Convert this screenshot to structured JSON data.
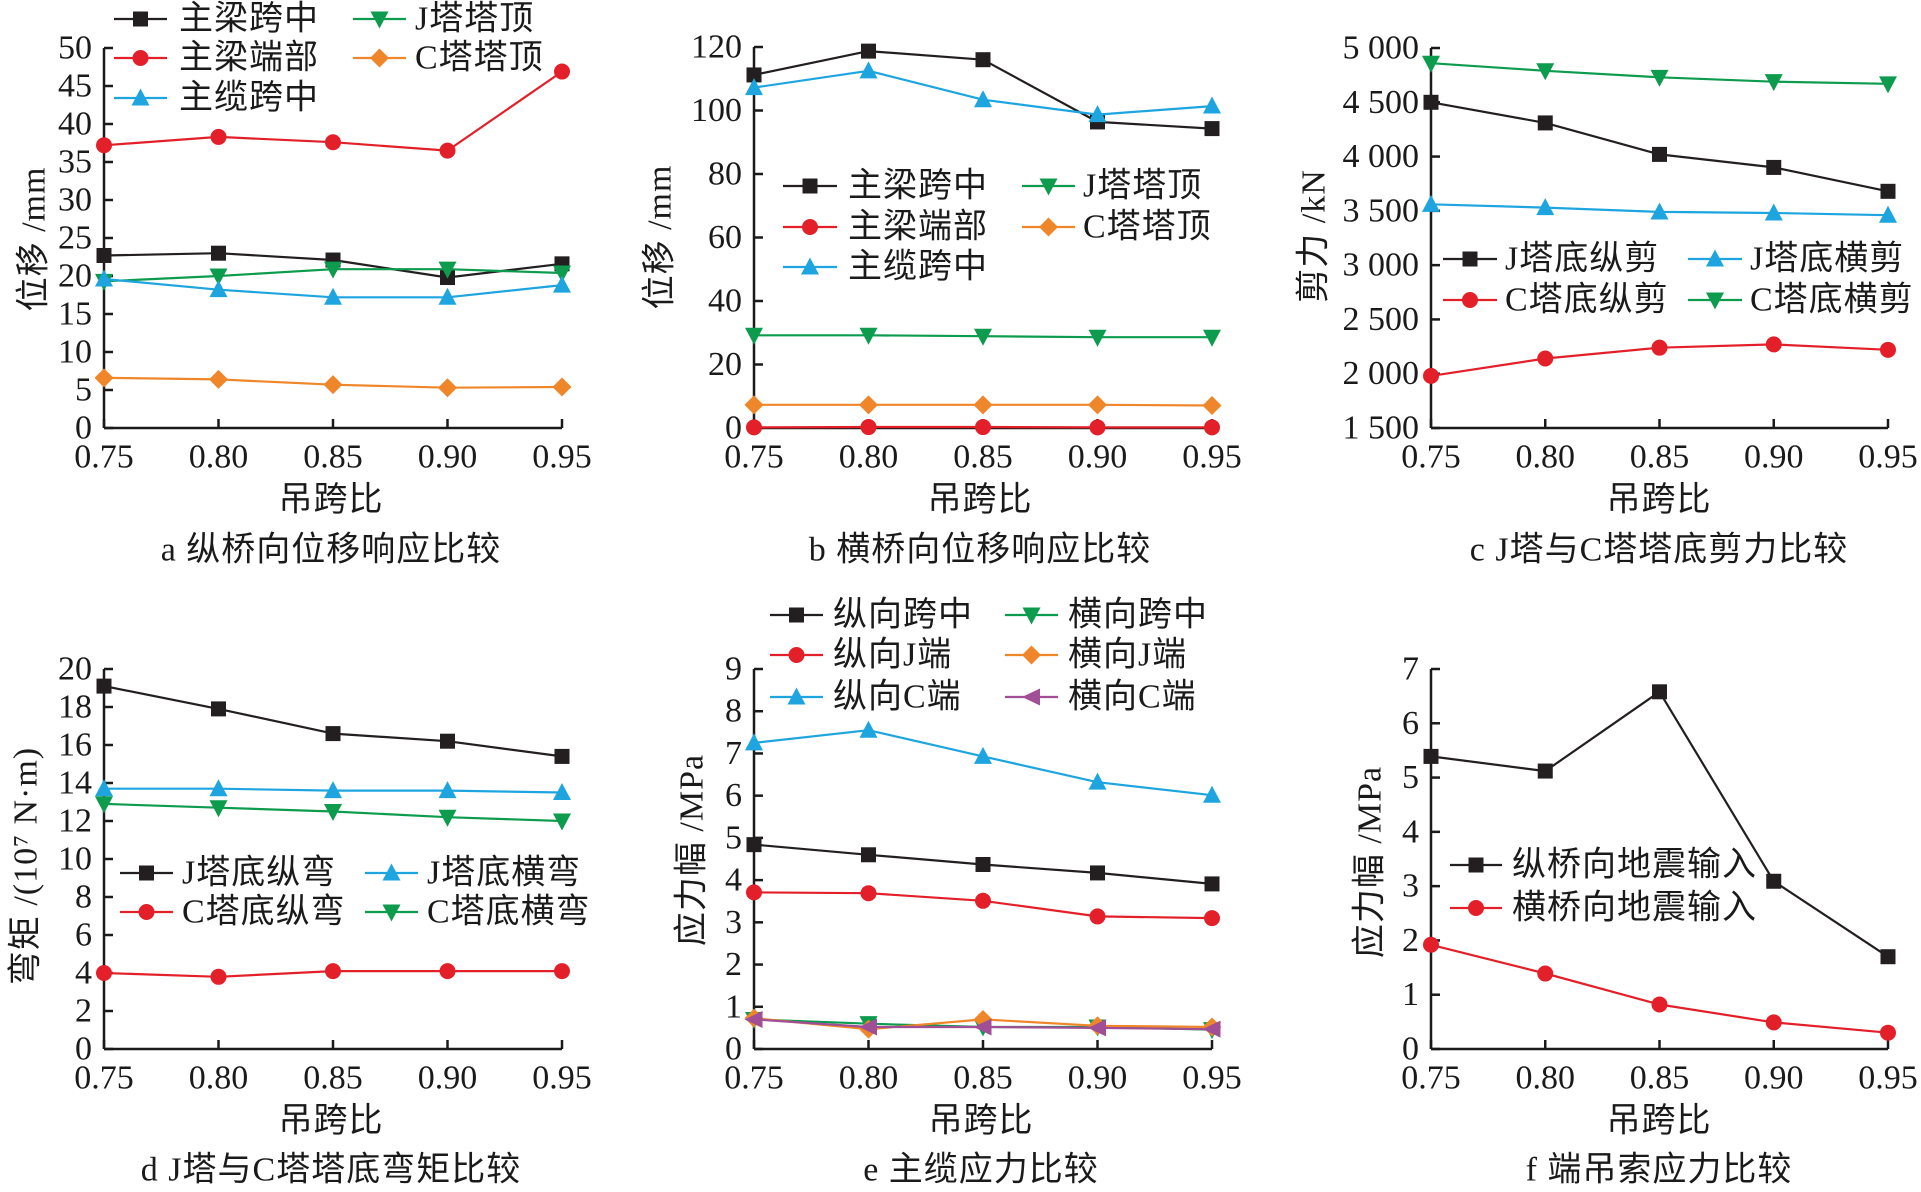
{
  "figure": {
    "background": "#ffffff",
    "panel_count": 6
  },
  "chart_data": [
    {
      "panel": "a",
      "type": "line",
      "title": "a  纵桥向位移响应比较",
      "xlabel": "吊跨比",
      "ylabel": "位移 /mm",
      "x": [
        0.75,
        0.8,
        0.85,
        0.9,
        0.95
      ],
      "xtick_labels": [
        "0.75",
        "0.80",
        "0.85",
        "0.90",
        "0.95"
      ],
      "ylim": [
        0,
        50
      ],
      "yticks": [
        0,
        5,
        10,
        15,
        20,
        25,
        30,
        35,
        40,
        45,
        50
      ],
      "ytick_labels": [
        "0",
        "5",
        "10",
        "15",
        "20",
        "25",
        "30",
        "35",
        "40",
        "45",
        "50"
      ],
      "grid": false,
      "legend": {
        "placement": "top",
        "columns": 2
      },
      "series": [
        {
          "name": "主梁跨中",
          "color": "#231f20",
          "marker": "square",
          "values": [
            22.7,
            23.0,
            22.1,
            19.8,
            21.6
          ]
        },
        {
          "name": "J塔塔顶",
          "color": "#0d9b4d",
          "marker": "triangle-down",
          "values": [
            19.3,
            20.0,
            20.9,
            20.9,
            20.4
          ]
        },
        {
          "name": "主梁端部",
          "color": "#e3202a",
          "marker": "circle",
          "values": [
            37.2,
            38.3,
            37.6,
            36.5,
            46.9
          ]
        },
        {
          "name": "C塔塔顶",
          "color": "#f0862a",
          "marker": "diamond",
          "values": [
            6.6,
            6.4,
            5.7,
            5.3,
            5.4
          ]
        },
        {
          "name": "主缆跨中",
          "color": "#1ea5e0",
          "marker": "triangle-up",
          "values": [
            19.6,
            18.2,
            17.2,
            17.2,
            18.8
          ]
        }
      ]
    },
    {
      "panel": "b",
      "type": "line",
      "title": "b  横桥向位移响应比较",
      "xlabel": "吊跨比",
      "ylabel": "位移 /mm",
      "x": [
        0.75,
        0.8,
        0.85,
        0.9,
        0.95
      ],
      "xtick_labels": [
        "0.75",
        "0.80",
        "0.85",
        "0.90",
        "0.95"
      ],
      "ylim": [
        0,
        120
      ],
      "yticks": [
        0,
        20,
        40,
        60,
        80,
        100,
        120
      ],
      "ytick_labels": [
        "0",
        "20",
        "40",
        "60",
        "80",
        "100",
        "120"
      ],
      "grid": false,
      "legend": {
        "placement": "center-right",
        "columns": 2
      },
      "series": [
        {
          "name": "主梁跨中",
          "color": "#231f20",
          "marker": "square",
          "values": [
            111.2,
            118.7,
            116.0,
            96.4,
            94.3
          ]
        },
        {
          "name": "J塔塔顶",
          "color": "#0d9b4d",
          "marker": "triangle-down",
          "values": [
            29.2,
            29.2,
            28.9,
            28.6,
            28.6
          ]
        },
        {
          "name": "主梁端部",
          "color": "#e3202a",
          "marker": "circle",
          "values": [
            0.2,
            0.3,
            0.3,
            0.2,
            0.2
          ]
        },
        {
          "name": "C塔塔顶",
          "color": "#f0862a",
          "marker": "diamond",
          "values": [
            7.3,
            7.3,
            7.3,
            7.3,
            7.1
          ]
        },
        {
          "name": "主缆跨中",
          "color": "#1ea5e0",
          "marker": "triangle-up",
          "values": [
            107.2,
            112.5,
            103.4,
            98.7,
            101.4
          ]
        }
      ]
    },
    {
      "panel": "c",
      "type": "line",
      "title": "c  J塔与C塔塔底剪力比较",
      "xlabel": "吊跨比",
      "ylabel": "剪力 /kN",
      "x": [
        0.75,
        0.8,
        0.85,
        0.9,
        0.95
      ],
      "xtick_labels": [
        "0.75",
        "0.80",
        "0.85",
        "0.90",
        "0.95"
      ],
      "ylim": [
        1500,
        5000
      ],
      "yticks": [
        1500,
        2000,
        2500,
        3000,
        3500,
        4000,
        4500,
        5000
      ],
      "ytick_labels": [
        "1 500",
        "2 000",
        "2 500",
        "3 000",
        "3 500",
        "4 000",
        "4 500",
        "5 000"
      ],
      "grid": false,
      "legend": {
        "placement": "center",
        "columns": 2
      },
      "series": [
        {
          "name": "J塔底纵剪",
          "color": "#231f20",
          "marker": "square",
          "values": [
            4500,
            4310,
            4020,
            3900,
            3680
          ]
        },
        {
          "name": "J塔底横剪",
          "color": "#1ea5e0",
          "marker": "triangle-up",
          "values": [
            3560,
            3530,
            3490,
            3480,
            3460
          ]
        },
        {
          "name": "C塔底纵剪",
          "color": "#e3202a",
          "marker": "circle",
          "values": [
            1980,
            2140,
            2240,
            2270,
            2220
          ]
        },
        {
          "name": "C塔底横剪",
          "color": "#0d9b4d",
          "marker": "triangle-down",
          "values": [
            4860,
            4790,
            4730,
            4690,
            4670
          ]
        }
      ]
    },
    {
      "panel": "d",
      "type": "line",
      "title": "d  J塔与C塔塔底弯矩比较",
      "xlabel": "吊跨比",
      "ylabel": "弯矩 /(10⁷ N·m)",
      "x": [
        0.75,
        0.8,
        0.85,
        0.9,
        0.95
      ],
      "xtick_labels": [
        "0.75",
        "0.80",
        "0.85",
        "0.90",
        "0.95"
      ],
      "ylim": [
        0,
        20
      ],
      "yticks": [
        0,
        2,
        4,
        6,
        8,
        10,
        12,
        14,
        16,
        18,
        20
      ],
      "ytick_labels": [
        "0",
        "2",
        "4",
        "6",
        "8",
        "10",
        "12",
        "14",
        "16",
        "18",
        "20"
      ],
      "grid": false,
      "legend": {
        "placement": "center",
        "columns": 2
      },
      "series": [
        {
          "name": "J塔底纵弯",
          "color": "#231f20",
          "marker": "square",
          "values": [
            19.1,
            17.9,
            16.6,
            16.2,
            15.4
          ]
        },
        {
          "name": "J塔底横弯",
          "color": "#1ea5e0",
          "marker": "triangle-up",
          "values": [
            13.7,
            13.7,
            13.6,
            13.6,
            13.5
          ]
        },
        {
          "name": "C塔底纵弯",
          "color": "#e3202a",
          "marker": "circle",
          "values": [
            4.0,
            3.8,
            4.1,
            4.1,
            4.1
          ]
        },
        {
          "name": "C塔底横弯",
          "color": "#0d9b4d",
          "marker": "triangle-down",
          "values": [
            12.9,
            12.7,
            12.5,
            12.2,
            12.0
          ]
        }
      ]
    },
    {
      "panel": "e",
      "type": "line",
      "title": "e  主缆应力比较",
      "xlabel": "吊跨比",
      "ylabel": "应力幅 /MPa",
      "x": [
        0.75,
        0.8,
        0.85,
        0.9,
        0.95
      ],
      "xtick_labels": [
        "0.75",
        "0.80",
        "0.85",
        "0.90",
        "0.95"
      ],
      "ylim": [
        0,
        9
      ],
      "yticks": [
        0,
        1,
        2,
        3,
        4,
        5,
        6,
        7,
        8,
        9
      ],
      "ytick_labels": [
        "0",
        "1",
        "2",
        "3",
        "4",
        "5",
        "6",
        "7",
        "8",
        "9"
      ],
      "grid": false,
      "legend": {
        "placement": "top",
        "columns": 2
      },
      "series": [
        {
          "name": "纵向跨中",
          "color": "#231f20",
          "marker": "square",
          "values": [
            4.84,
            4.6,
            4.37,
            4.17,
            3.91
          ]
        },
        {
          "name": "横向跨中",
          "color": "#0d9b4d",
          "marker": "triangle-down",
          "values": [
            0.7,
            0.6,
            0.52,
            0.52,
            0.46
          ]
        },
        {
          "name": "纵向J端",
          "color": "#e3202a",
          "marker": "circle",
          "values": [
            3.71,
            3.69,
            3.51,
            3.14,
            3.1
          ]
        },
        {
          "name": "横向J端",
          "color": "#f0862a",
          "marker": "diamond",
          "values": [
            0.73,
            0.47,
            0.7,
            0.55,
            0.52
          ]
        },
        {
          "name": "纵向C端",
          "color": "#1ea5e0",
          "marker": "triangle-up",
          "values": [
            7.25,
            7.55,
            6.93,
            6.32,
            6.01
          ]
        },
        {
          "name": "横向C端",
          "color": "#a04e96",
          "marker": "triangle-left",
          "values": [
            0.7,
            0.52,
            0.52,
            0.5,
            0.47
          ]
        }
      ]
    },
    {
      "panel": "f",
      "type": "line",
      "title": "f  端吊索应力比较",
      "xlabel": "吊跨比",
      "ylabel": "应力幅 /MPa",
      "x": [
        0.75,
        0.8,
        0.85,
        0.9,
        0.95
      ],
      "xtick_labels": [
        "0.75",
        "0.80",
        "0.85",
        "0.90",
        "0.95"
      ],
      "ylim": [
        0,
        7
      ],
      "yticks": [
        0,
        1,
        2,
        3,
        4,
        5,
        6,
        7
      ],
      "ytick_labels": [
        "0",
        "1",
        "2",
        "3",
        "4",
        "5",
        "6",
        "7"
      ],
      "grid": false,
      "legend": {
        "placement": "center",
        "columns": 1
      },
      "series": [
        {
          "name": "纵桥向地震输入",
          "color": "#231f20",
          "marker": "square",
          "values": [
            5.39,
            5.12,
            6.58,
            3.09,
            1.7
          ]
        },
        {
          "name": "横桥向地震输入",
          "color": "#e3202a",
          "marker": "circle",
          "values": [
            1.92,
            1.39,
            0.82,
            0.49,
            0.3
          ]
        }
      ]
    }
  ]
}
